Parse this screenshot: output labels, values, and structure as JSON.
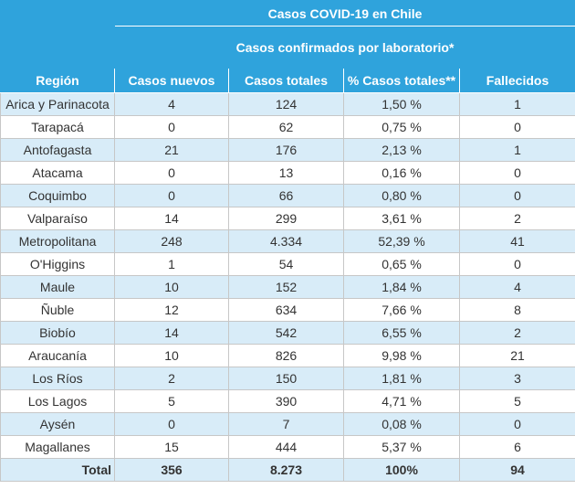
{
  "header": {
    "title": "Casos COVID-19 en Chile",
    "subtitle": "Casos confirmados por laboratorio*"
  },
  "columns": [
    "Región",
    "Casos nuevos",
    "Casos totales",
    "% Casos totales**",
    "Fallecidos"
  ],
  "rows": [
    [
      "Arica y Parinacota",
      "4",
      "124",
      "1,50 %",
      "1"
    ],
    [
      "Tarapacá",
      "0",
      "62",
      "0,75 %",
      "0"
    ],
    [
      "Antofagasta",
      "21",
      "176",
      "2,13 %",
      "1"
    ],
    [
      "Atacama",
      "0",
      "13",
      "0,16 %",
      "0"
    ],
    [
      "Coquimbo",
      "0",
      "66",
      "0,80 %",
      "0"
    ],
    [
      "Valparaíso",
      "14",
      "299",
      "3,61 %",
      "2"
    ],
    [
      "Metropolitana",
      "248",
      "4.334",
      "52,39 %",
      "41"
    ],
    [
      "O'Higgins",
      "1",
      "54",
      "0,65 %",
      "0"
    ],
    [
      "Maule",
      "10",
      "152",
      "1,84 %",
      "4"
    ],
    [
      "Ñuble",
      "12",
      "634",
      "7,66 %",
      "8"
    ],
    [
      "Biobío",
      "14",
      "542",
      "6,55 %",
      "2"
    ],
    [
      "Araucanía",
      "10",
      "826",
      "9,98 %",
      "21"
    ],
    [
      "Los Ríos",
      "2",
      "150",
      "1,81 %",
      "3"
    ],
    [
      "Los Lagos",
      "5",
      "390",
      "4,71 %",
      "5"
    ],
    [
      "Aysén",
      "0",
      "7",
      "0,08 %",
      "0"
    ],
    [
      "Magallanes",
      "15",
      "444",
      "5,37 %",
      "6"
    ]
  ],
  "total": [
    "Total",
    "356",
    "8.273",
    "100%",
    "94"
  ],
  "colors": {
    "header_bg": "#2fa3dc",
    "row_alt_bg": "#d8ecf8",
    "row_bg": "#ffffff",
    "text": "#333333"
  }
}
